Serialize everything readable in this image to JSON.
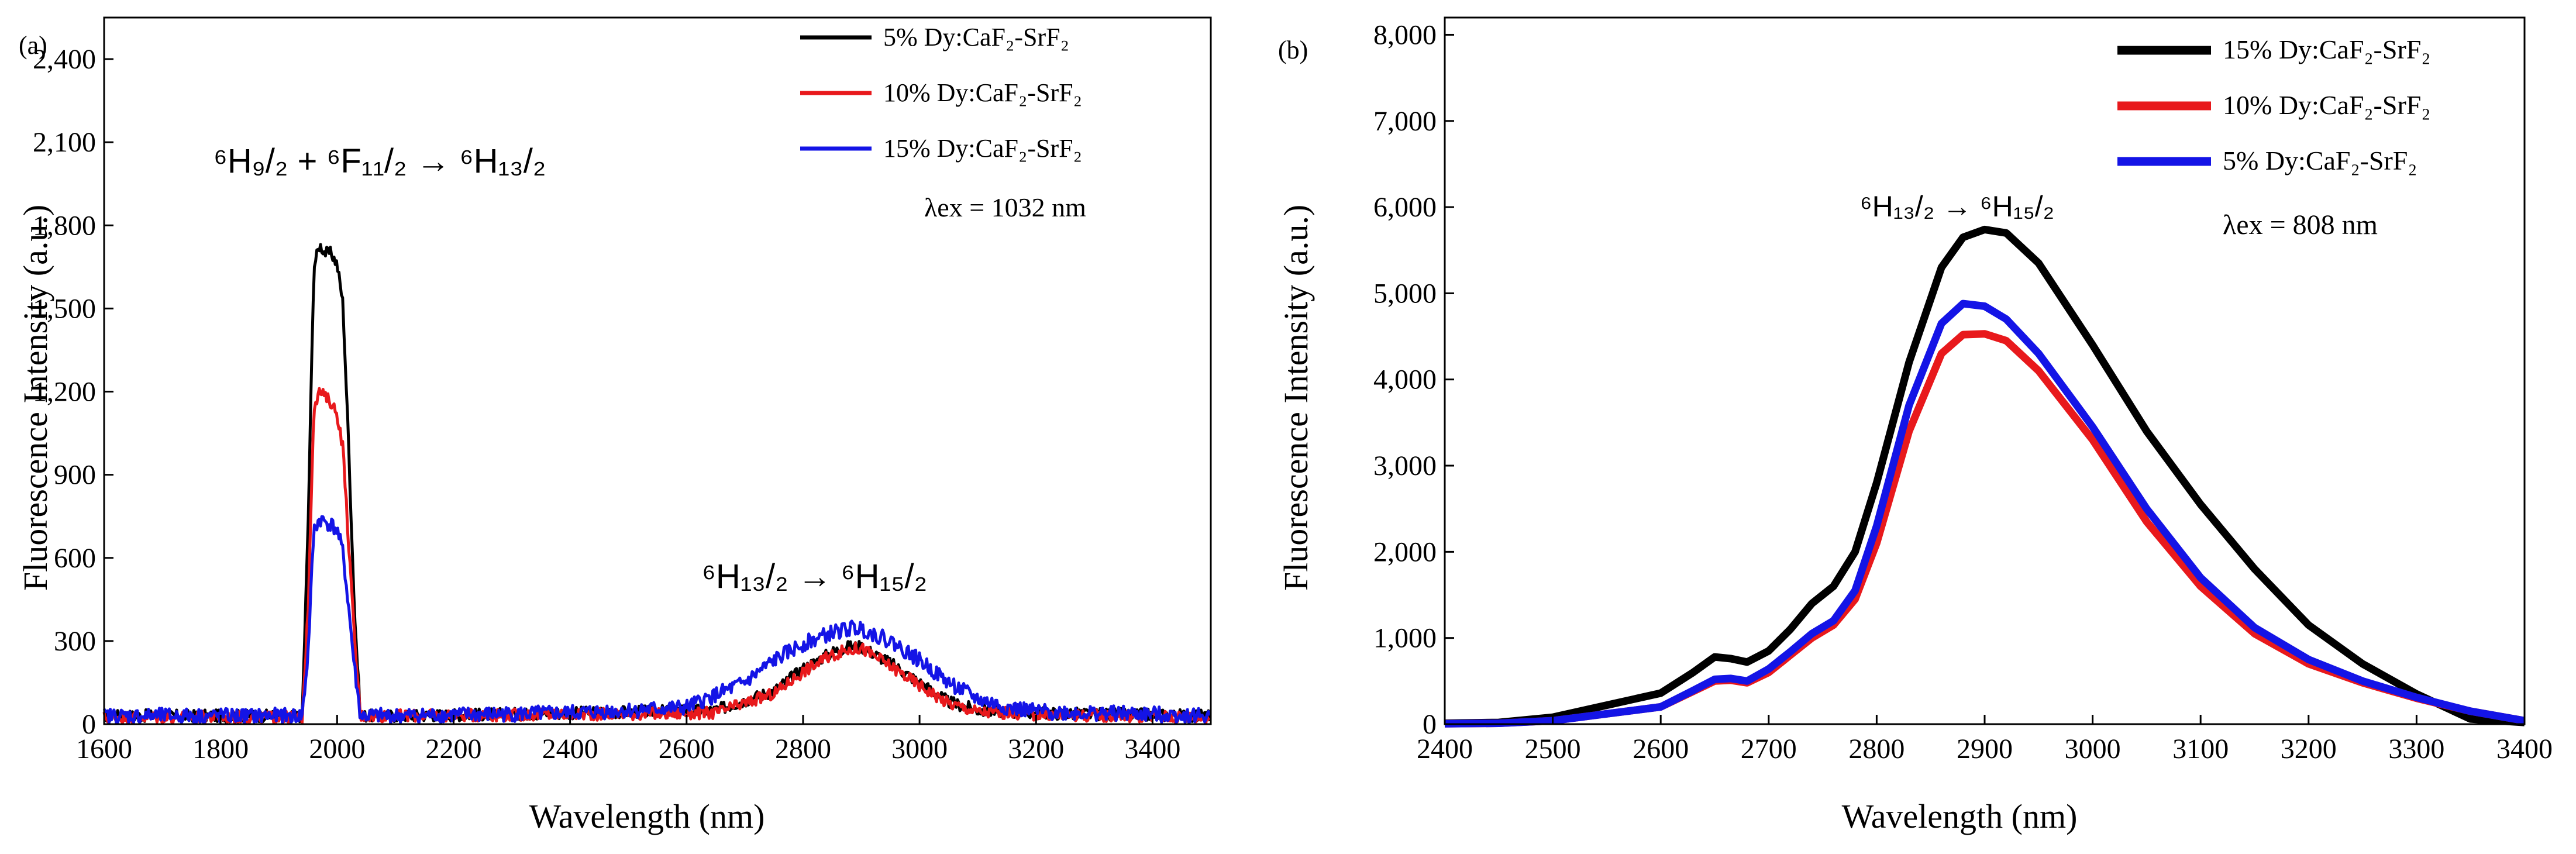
{
  "chart_data": [
    {
      "panel_label": "(a)",
      "type": "line",
      "xlabel": "Wavelength (nm)",
      "ylabel": "Fluorescence Intensity (a.u.)",
      "xlim": [
        1600,
        3500
      ],
      "ylim": [
        0,
        2550
      ],
      "x_ticks": [
        1600,
        1800,
        2000,
        2200,
        2400,
        2600,
        2800,
        3000,
        3200,
        3400
      ],
      "y_ticks": [
        0,
        300,
        600,
        900,
        1200,
        1500,
        1800,
        2100,
        2400
      ],
      "x_tick_labels": [
        "1600",
        "1800",
        "2000",
        "2200",
        "2400",
        "2600",
        "2800",
        "3000",
        "3200",
        "3400"
      ],
      "y_tick_labels": [
        "0",
        "300",
        "600",
        "900",
        "1,200",
        "1,500",
        "1,800",
        "2,100",
        "2,400"
      ],
      "legend_position": "top-right",
      "annotations": {
        "transition_1": "⁶H₉/₂ + ⁶F₁₁/₂ → ⁶H₁₃/₂",
        "transition_2": "⁶H₁₃/₂ → ⁶H₁₅/₂",
        "excitation": "λex = 1032 nm"
      },
      "series": [
        {
          "name": "5% Dy:CaF₂-SrF₂",
          "color": "#000000",
          "noise": 22,
          "x": [
            1600,
            1940,
            1950,
            1960,
            1970,
            1980,
            1990,
            2000,
            2010,
            2020,
            2030,
            2040,
            2100,
            2400,
            2650,
            2750,
            2800,
            2850,
            2880,
            2900,
            2950,
            3000,
            3050,
            3100,
            3200,
            3500
          ],
          "y": [
            30,
            30,
            700,
            1650,
            1730,
            1700,
            1700,
            1660,
            1520,
            1000,
            400,
            30,
            30,
            40,
            50,
            120,
            200,
            260,
            280,
            280,
            220,
            150,
            80,
            50,
            40,
            30
          ]
        },
        {
          "name": "10% Dy:CaF₂-SrF₂",
          "color": "#e8191c",
          "noise": 22,
          "x": [
            1600,
            1940,
            1950,
            1960,
            1970,
            1980,
            1990,
            2000,
            2010,
            2020,
            2030,
            2040,
            2100,
            2400,
            2650,
            2750,
            2800,
            2850,
            2880,
            2900,
            2950,
            3000,
            3050,
            3100,
            3200,
            3500
          ],
          "y": [
            25,
            25,
            400,
            1150,
            1200,
            1180,
            1160,
            1120,
            1000,
            650,
            300,
            30,
            30,
            35,
            40,
            110,
            190,
            250,
            270,
            275,
            210,
            140,
            75,
            45,
            35,
            25
          ]
        },
        {
          "name": "15% Dy:CaF₂-SrF₂",
          "color": "#1414e6",
          "noise": 28,
          "x": [
            1600,
            1940,
            1950,
            1960,
            1970,
            1980,
            1990,
            2000,
            2010,
            2020,
            2030,
            2040,
            2100,
            2400,
            2600,
            2700,
            2750,
            2800,
            2850,
            2880,
            2900,
            2950,
            3000,
            3050,
            3100,
            3150,
            3200,
            3500
          ],
          "y": [
            30,
            30,
            250,
            700,
            740,
            730,
            720,
            700,
            620,
            420,
            200,
            30,
            30,
            40,
            60,
            150,
            230,
            290,
            330,
            345,
            345,
            300,
            230,
            150,
            90,
            60,
            45,
            30
          ]
        }
      ]
    },
    {
      "panel_label": "(b)",
      "type": "line",
      "xlabel": "Wavelength (nm)",
      "ylabel": "Fluorescence Intensity (a.u.)",
      "xlim": [
        2400,
        3400
      ],
      "ylim": [
        0,
        8200
      ],
      "x_ticks": [
        2400,
        2500,
        2600,
        2700,
        2800,
        2900,
        3000,
        3100,
        3200,
        3300,
        3400
      ],
      "y_ticks": [
        0,
        1000,
        2000,
        3000,
        4000,
        5000,
        6000,
        7000,
        8000
      ],
      "x_tick_labels": [
        "2400",
        "2500",
        "2600",
        "2700",
        "2800",
        "2900",
        "3000",
        "3100",
        "3200",
        "3300",
        "3400"
      ],
      "y_tick_labels": [
        "0",
        "1,000",
        "2,000",
        "3,000",
        "4,000",
        "5,000",
        "6,000",
        "7,000",
        "8,000"
      ],
      "legend_position": "top-right",
      "annotations": {
        "transition": "⁶H₁₃/₂ → ⁶H₁₅/₂",
        "excitation": "λex = 808 nm"
      },
      "series": [
        {
          "name": "15% Dy:CaF₂-SrF₂",
          "color": "#000000",
          "noise": 0,
          "x": [
            2400,
            2450,
            2500,
            2550,
            2600,
            2630,
            2650,
            2665,
            2680,
            2700,
            2720,
            2740,
            2760,
            2780,
            2800,
            2830,
            2860,
            2880,
            2900,
            2920,
            2950,
            3000,
            3050,
            3100,
            3150,
            3200,
            3250,
            3300,
            3350,
            3400
          ],
          "y": [
            10,
            20,
            80,
            220,
            360,
            600,
            780,
            760,
            720,
            850,
            1100,
            1400,
            1600,
            2000,
            2800,
            4200,
            5300,
            5650,
            5740,
            5700,
            5350,
            4400,
            3400,
            2550,
            1800,
            1150,
            700,
            350,
            60,
            20
          ]
        },
        {
          "name": "10% Dy:CaF₂-SrF₂",
          "color": "#e8191c",
          "noise": 0,
          "x": [
            2400,
            2450,
            2500,
            2550,
            2600,
            2630,
            2650,
            2665,
            2680,
            2700,
            2720,
            2740,
            2760,
            2780,
            2800,
            2830,
            2860,
            2880,
            2900,
            2920,
            2950,
            3000,
            3050,
            3100,
            3150,
            3200,
            3250,
            3300,
            3350,
            3400
          ],
          "y": [
            5,
            10,
            40,
            120,
            200,
            380,
            500,
            510,
            480,
            600,
            800,
            1000,
            1150,
            1450,
            2100,
            3400,
            4300,
            4520,
            4530,
            4450,
            4100,
            3300,
            2350,
            1600,
            1050,
            700,
            480,
            300,
            150,
            40
          ]
        },
        {
          "name": "5% Dy:CaF₂-SrF₂",
          "color": "#1414e6",
          "noise": 0,
          "x": [
            2400,
            2450,
            2500,
            2550,
            2600,
            2630,
            2650,
            2665,
            2680,
            2700,
            2720,
            2740,
            2760,
            2780,
            2800,
            2830,
            2860,
            2880,
            2900,
            2920,
            2950,
            3000,
            3050,
            3100,
            3150,
            3200,
            3250,
            3300,
            3350,
            3400
          ],
          "y": [
            5,
            10,
            40,
            120,
            200,
            390,
            520,
            530,
            500,
            640,
            840,
            1050,
            1200,
            1550,
            2300,
            3700,
            4650,
            4880,
            4850,
            4700,
            4300,
            3450,
            2500,
            1700,
            1120,
            750,
            500,
            310,
            150,
            40
          ]
        }
      ]
    }
  ]
}
